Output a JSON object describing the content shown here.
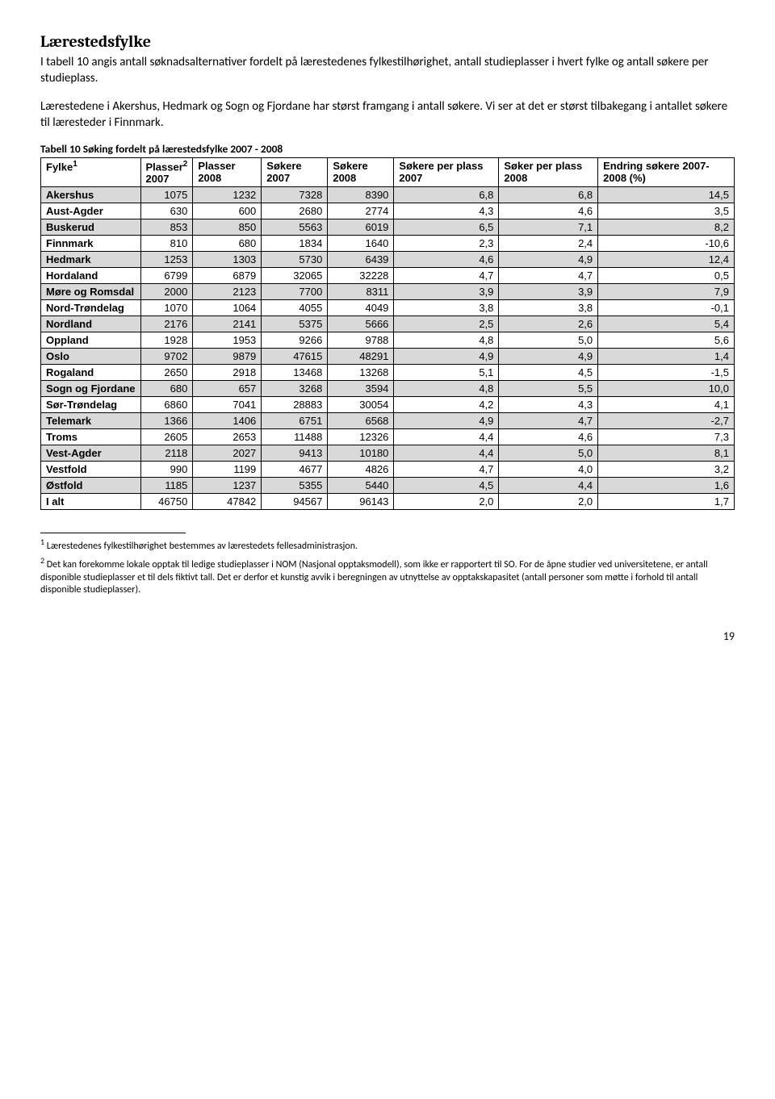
{
  "heading": "Lærestedsfylke",
  "intro_p1": "I tabell 10 angis antall søknadsalternativer fordelt på lærestedenes fylkestilhørighet, antall studieplasser i hvert fylke og antall søkere per studieplass.",
  "intro_p2": "Lærestedene i Akershus, Hedmark og Sogn og Fjordane har størst framgang i antall søkere. Vi ser at det er størst tilbakegang i antallet søkere til læresteder i Finnmark.",
  "table_title": "Tabell 10 Søking fordelt på lærestedsfylke 2007 - 2008",
  "columns": {
    "c0": "Fylke",
    "c0_sup": "1",
    "c1": "Plasser",
    "c1_sup": "2",
    "c1_line2": "2007",
    "c2": "Plasser 2008",
    "c3": "Søkere 2007",
    "c4": "Søkere 2008",
    "c5": "Søkere per plass 2007",
    "c6": "Søker per plass 2008",
    "c7": "Endring søkere 2007-2008 (%)"
  },
  "rows": [
    {
      "shade": true,
      "label": "Akershus",
      "v": [
        "1075",
        "1232",
        "7328",
        "8390",
        "6,8",
        "6,8",
        "14,5"
      ]
    },
    {
      "shade": false,
      "label": "Aust-Agder",
      "v": [
        "630",
        "600",
        "2680",
        "2774",
        "4,3",
        "4,6",
        "3,5"
      ]
    },
    {
      "shade": true,
      "label": "Buskerud",
      "v": [
        "853",
        "850",
        "5563",
        "6019",
        "6,5",
        "7,1",
        "8,2"
      ]
    },
    {
      "shade": false,
      "label": "Finnmark",
      "v": [
        "810",
        "680",
        "1834",
        "1640",
        "2,3",
        "2,4",
        "-10,6"
      ]
    },
    {
      "shade": true,
      "label": "Hedmark",
      "v": [
        "1253",
        "1303",
        "5730",
        "6439",
        "4,6",
        "4,9",
        "12,4"
      ]
    },
    {
      "shade": false,
      "label": "Hordaland",
      "v": [
        "6799",
        "6879",
        "32065",
        "32228",
        "4,7",
        "4,7",
        "0,5"
      ]
    },
    {
      "shade": true,
      "label": "Møre og Romsdal",
      "v": [
        "2000",
        "2123",
        "7700",
        "8311",
        "3,9",
        "3,9",
        "7,9"
      ]
    },
    {
      "shade": false,
      "label": "Nord-Trøndelag",
      "v": [
        "1070",
        "1064",
        "4055",
        "4049",
        "3,8",
        "3,8",
        "-0,1"
      ]
    },
    {
      "shade": true,
      "label": "Nordland",
      "v": [
        "2176",
        "2141",
        "5375",
        "5666",
        "2,5",
        "2,6",
        "5,4"
      ]
    },
    {
      "shade": false,
      "label": "Oppland",
      "v": [
        "1928",
        "1953",
        "9266",
        "9788",
        "4,8",
        "5,0",
        "5,6"
      ]
    },
    {
      "shade": true,
      "label": "Oslo",
      "v": [
        "9702",
        "9879",
        "47615",
        "48291",
        "4,9",
        "4,9",
        "1,4"
      ]
    },
    {
      "shade": false,
      "label": "Rogaland",
      "v": [
        "2650",
        "2918",
        "13468",
        "13268",
        "5,1",
        "4,5",
        "-1,5"
      ]
    },
    {
      "shade": true,
      "label": "Sogn og Fjordane",
      "v": [
        "680",
        "657",
        "3268",
        "3594",
        "4,8",
        "5,5",
        "10,0"
      ]
    },
    {
      "shade": false,
      "label": "Sør-Trøndelag",
      "v": [
        "6860",
        "7041",
        "28883",
        "30054",
        "4,2",
        "4,3",
        "4,1"
      ]
    },
    {
      "shade": true,
      "label": "Telemark",
      "v": [
        "1366",
        "1406",
        "6751",
        "6568",
        "4,9",
        "4,7",
        "-2,7"
      ]
    },
    {
      "shade": false,
      "label": "Troms",
      "v": [
        "2605",
        "2653",
        "11488",
        "12326",
        "4,4",
        "4,6",
        "7,3"
      ]
    },
    {
      "shade": true,
      "label": "Vest-Agder",
      "v": [
        "2118",
        "2027",
        "9413",
        "10180",
        "4,4",
        "5,0",
        "8,1"
      ]
    },
    {
      "shade": false,
      "label": "Vestfold",
      "v": [
        "990",
        "1199",
        "4677",
        "4826",
        "4,7",
        "4,0",
        "3,2"
      ]
    },
    {
      "shade": true,
      "label": "Østfold",
      "v": [
        "1185",
        "1237",
        "5355",
        "5440",
        "4,5",
        "4,4",
        "1,6"
      ]
    },
    {
      "shade": false,
      "label": "I alt",
      "v": [
        "46750",
        "47842",
        "94567",
        "96143",
        "2,0",
        "2,0",
        "1,7"
      ]
    }
  ],
  "footnote1_sup": "1",
  "footnote1": " Lærestedenes fylkestilhørighet bestemmes av lærestedets fellesadministrasjon.",
  "footnote2_sup": "2",
  "footnote2": " Det kan forekomme lokale opptak til ledige studieplasser i NOM (Nasjonal opptaksmodell), som ikke er rapportert til SO. For de åpne studier ved universitetene, er antall disponible studieplasser et til dels fiktivt tall. Det er derfor et kunstig avvik i beregningen av utnyttelse av opptakskapasitet (antall personer som møtte i forhold til antall disponible studieplasser).",
  "page_number": "19"
}
